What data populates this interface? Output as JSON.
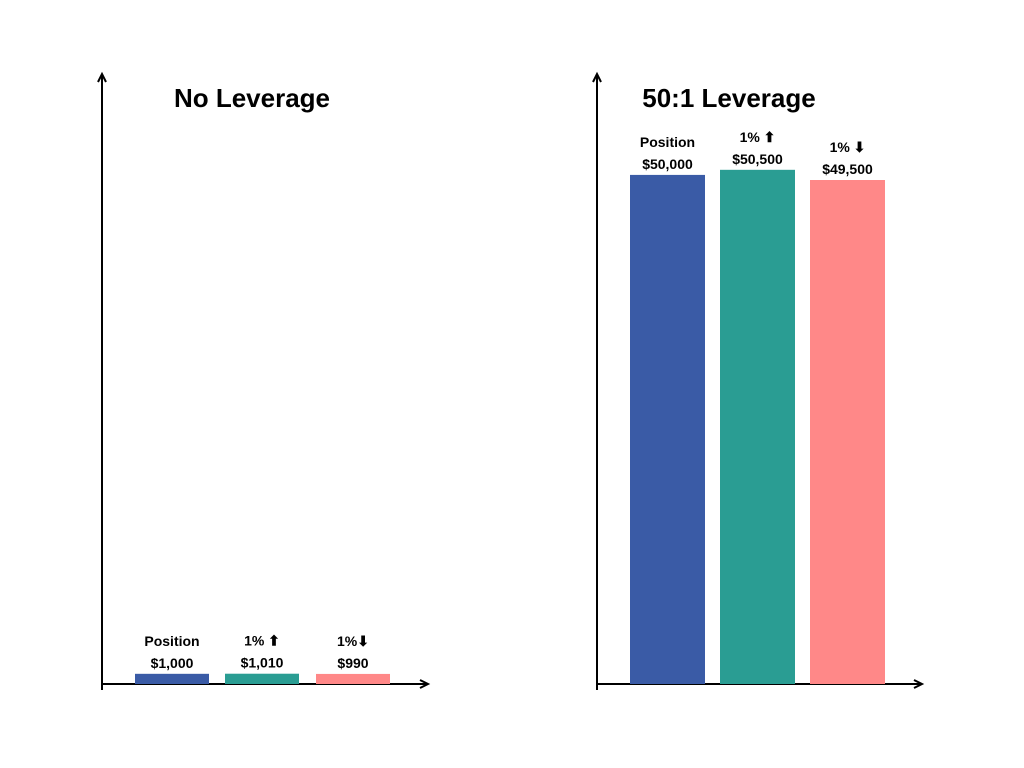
{
  "chart_data": [
    {
      "type": "bar",
      "title": "No Leverage",
      "xlabel": "",
      "ylabel": "",
      "ylim": [
        0,
        55000
      ],
      "grid": false,
      "categories": [
        "Position",
        "1% ↑",
        "1% ↓"
      ],
      "values": [
        1000,
        1010,
        990
      ],
      "labels": [
        {
          "top": "Position",
          "bottom": "$1,000"
        },
        {
          "top": "1% ⬆",
          "bottom": "$1,010"
        },
        {
          "top": "1%⬇",
          "bottom": "$990"
        }
      ],
      "colors": [
        "#3a5ba6",
        "#2a9d93",
        "#ff8888"
      ]
    },
    {
      "type": "bar",
      "title": "50:1 Leverage",
      "xlabel": "",
      "ylabel": "",
      "ylim": [
        0,
        55000
      ],
      "grid": false,
      "categories": [
        "Position",
        "1% ↑",
        "1% ↓"
      ],
      "values": [
        50000,
        50500,
        49500
      ],
      "labels": [
        {
          "top": "Position",
          "bottom": "$50,000"
        },
        {
          "top": "1% ⬆",
          "bottom": "$50,500"
        },
        {
          "top": "1% ⬇",
          "bottom": "$49,500"
        }
      ],
      "colors": [
        "#3a5ba6",
        "#2a9d93",
        "#ff8888"
      ]
    }
  ]
}
